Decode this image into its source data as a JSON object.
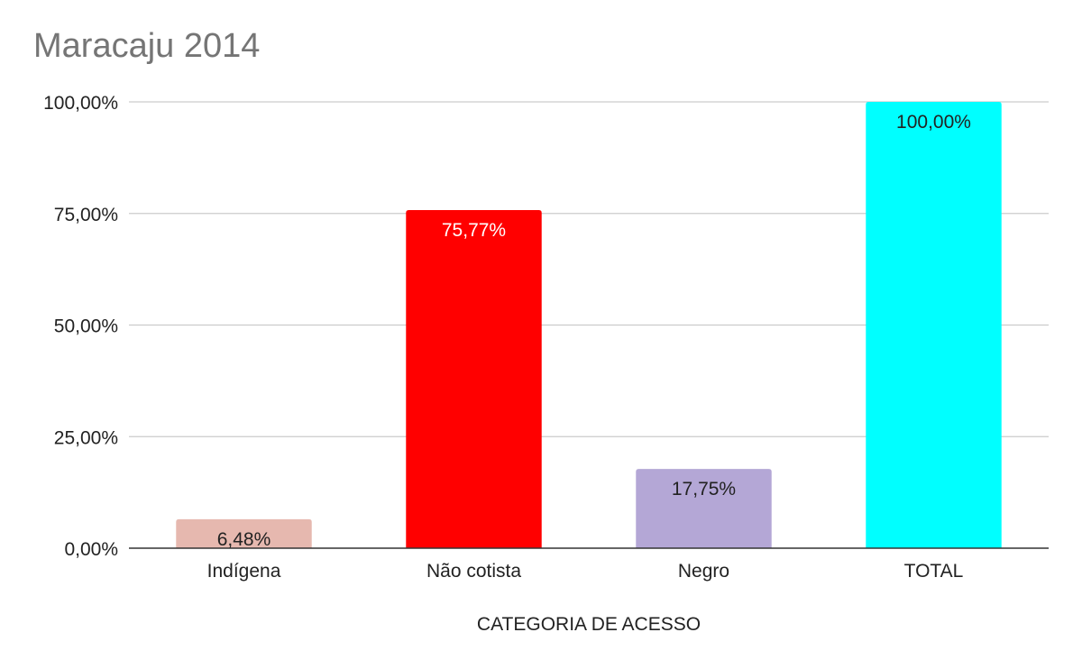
{
  "chart_data": {
    "type": "bar",
    "title": "Maracaju 2014",
    "xlabel": "CATEGORIA DE ACESSO",
    "ylabel": "",
    "categories": [
      "Indígena",
      "Não cotista",
      "Negro",
      "TOTAL"
    ],
    "values": [
      6.48,
      75.77,
      17.75,
      100.0
    ],
    "value_labels": [
      "6,48%",
      "75,77%",
      "17,75%",
      "100,00%"
    ],
    "bar_colors": [
      "#e6b8af",
      "#ff0000",
      "#b4a7d6",
      "#00ffff"
    ],
    "label_colors": [
      "#222222",
      "#ffffff",
      "#222222",
      "#222222"
    ],
    "ylim": [
      0,
      100
    ],
    "yticks": [
      0,
      25,
      50,
      75,
      100
    ],
    "ytick_labels": [
      "0,00%",
      "25,00%",
      "50,00%",
      "75,00%",
      "100,00%"
    ],
    "grid": true,
    "legend": "none"
  }
}
